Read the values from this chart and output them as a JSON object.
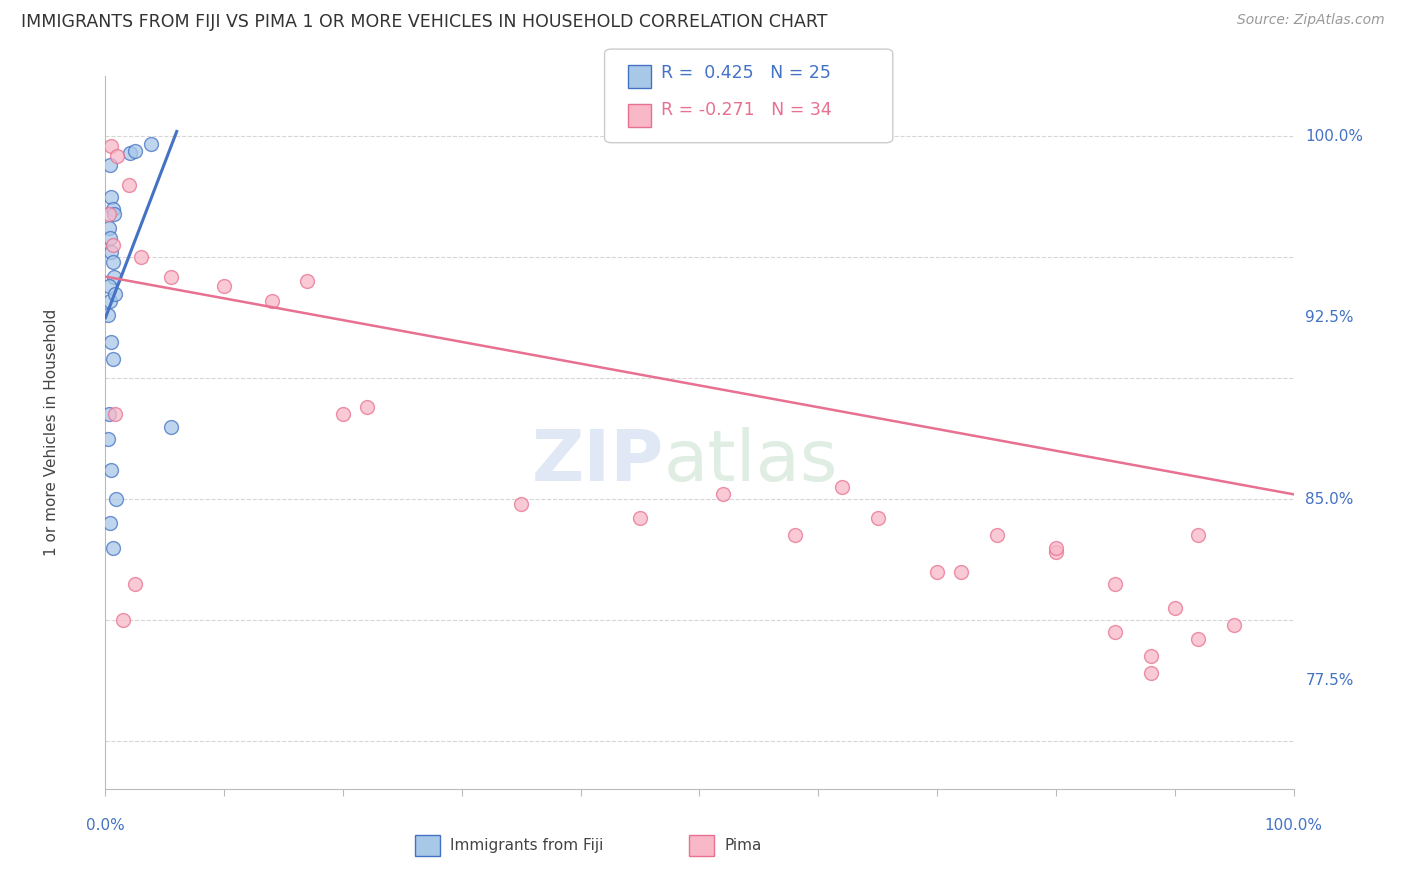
{
  "title": "IMMIGRANTS FROM FIJI VS PIMA 1 OR MORE VEHICLES IN HOUSEHOLD CORRELATION CHART",
  "source": "Source: ZipAtlas.com",
  "ylabel": "1 or more Vehicles in Household",
  "y_ticks_right": [
    100.0,
    92.5,
    85.0,
    77.5
  ],
  "y_ticks_right_labels": [
    "100.0%",
    "92.5%",
    "85.0%",
    "77.5%"
  ],
  "xlim": [
    0.0,
    100.0
  ],
  "ylim": [
    73.0,
    102.5
  ],
  "color_fiji": "#a8c8e8",
  "color_pima": "#f8b8c8",
  "color_fiji_line": "#4472c4",
  "color_pima_line": "#e87090",
  "color_axis_labels": "#4472c4",
  "fiji_scatter_x": [
    2.1,
    2.5,
    3.8,
    0.4,
    0.5,
    0.6,
    0.7,
    0.3,
    0.4,
    0.5,
    0.6,
    0.7,
    0.3,
    0.4,
    0.2,
    0.5,
    0.6,
    0.8,
    0.3,
    5.5,
    0.2,
    0.5,
    0.9,
    0.4,
    0.6
  ],
  "fiji_scatter_y": [
    99.3,
    99.4,
    99.7,
    98.8,
    97.5,
    97.0,
    96.8,
    96.2,
    95.8,
    95.2,
    94.8,
    94.2,
    93.8,
    93.2,
    92.6,
    91.5,
    90.8,
    93.5,
    88.5,
    88.0,
    87.5,
    86.2,
    85.0,
    84.0,
    83.0
  ],
  "pima_scatter_x": [
    0.5,
    1.0,
    2.0,
    0.3,
    0.6,
    3.0,
    5.5,
    10.0,
    17.0,
    14.0,
    22.0,
    52.0,
    58.0,
    65.0,
    72.0,
    75.0,
    80.0,
    85.0,
    85.0,
    88.0,
    92.0,
    80.0,
    90.0,
    95.0,
    88.0,
    62.0,
    2.5,
    0.8,
    1.5,
    70.0,
    92.0,
    35.0,
    20.0,
    45.0
  ],
  "pima_scatter_y": [
    99.6,
    99.2,
    98.0,
    96.8,
    95.5,
    95.0,
    94.2,
    93.8,
    94.0,
    93.2,
    88.8,
    85.2,
    83.5,
    84.2,
    82.0,
    83.5,
    82.8,
    81.5,
    79.5,
    78.5,
    79.2,
    83.0,
    80.5,
    79.8,
    77.8,
    85.5,
    81.5,
    88.5,
    80.0,
    82.0,
    83.5,
    84.8,
    88.5,
    84.2
  ],
  "fiji_line_x": [
    0.0,
    6.0
  ],
  "fiji_line_y": [
    92.5,
    100.2
  ],
  "pima_line_x": [
    0.0,
    100.0
  ],
  "pima_line_y": [
    94.2,
    85.2
  ],
  "background_color": "#ffffff",
  "grid_color": "#cccccc"
}
